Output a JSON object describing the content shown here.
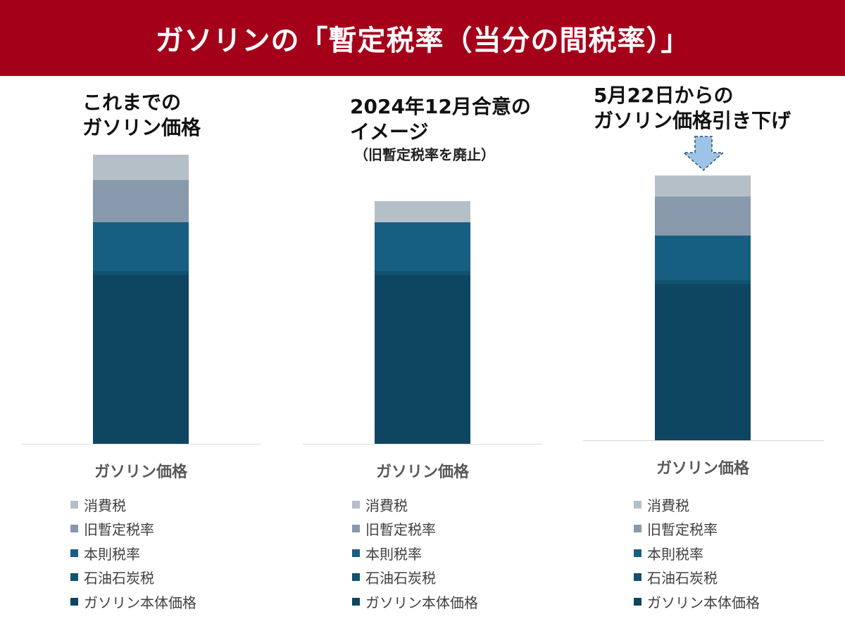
{
  "page": {
    "title": "ガソリンの「暫定税率（当分の間税率）」",
    "banner_color": "#A50019"
  },
  "panels": [
    {
      "heading_lines": [
        "これまでの",
        "ガソリン価格"
      ],
      "note": ""
    },
    {
      "heading_lines": [
        "2024年12月合意の",
        "イメージ"
      ],
      "note": "（旧暫定税率を廃止）"
    },
    {
      "heading_lines": [
        "5月22日からの",
        "ガソリン価格引き下げ"
      ],
      "note": "",
      "arrow_icon": "down-arrow-icon"
    }
  ],
  "chart_data": [
    {
      "type": "bar",
      "stacked": true,
      "category_label": "ガソリン価格",
      "series": [
        {
          "name": "消費税",
          "value": 12,
          "color": "#B5BFC8"
        },
        {
          "name": "旧暫定税率",
          "value": 20,
          "color": "#8799AA"
        },
        {
          "name": "本則税率",
          "value": 23,
          "color": "#175F82"
        },
        {
          "name": "石油石炭税",
          "value": 2,
          "color": "#115270"
        },
        {
          "name": "ガソリン本体価格",
          "value": 80,
          "color": "#0E4560"
        }
      ],
      "legend_order": [
        "消費税",
        "旧暫定税率",
        "本則税率",
        "石油石炭税",
        "ガソリン本体価格"
      ],
      "legend_position": "bottom",
      "grid": false,
      "axes_visible": false
    },
    {
      "type": "bar",
      "stacked": true,
      "category_label": "ガソリン価格",
      "series": [
        {
          "name": "消費税",
          "value": 10,
          "color": "#B5BFC8"
        },
        {
          "name": "旧暫定税率",
          "value": 0,
          "color": "#8799AA"
        },
        {
          "name": "本則税率",
          "value": 23,
          "color": "#175F82"
        },
        {
          "name": "石油石炭税",
          "value": 2,
          "color": "#115270"
        },
        {
          "name": "ガソリン本体価格",
          "value": 80,
          "color": "#0E4560"
        }
      ],
      "legend_order": [
        "消費税",
        "旧暫定税率",
        "本則税率",
        "石油石炭税",
        "ガソリン本体価格"
      ],
      "legend_position": "bottom",
      "grid": false,
      "axes_visible": false
    },
    {
      "type": "bar",
      "stacked": true,
      "category_label": "ガソリン価格",
      "series": [
        {
          "name": "消費税",
          "value": 10,
          "color": "#B5BFC8"
        },
        {
          "name": "旧暫定税率",
          "value": 18.5,
          "color": "#8799AA"
        },
        {
          "name": "本則税率",
          "value": 21,
          "color": "#175F82"
        },
        {
          "name": "石油石炭税",
          "value": 2,
          "color": "#115270"
        },
        {
          "name": "ガソリン本体価格",
          "value": 74,
          "color": "#0E4560"
        }
      ],
      "legend_order": [
        "消費税",
        "旧暫定税率",
        "本則税率",
        "石油石炭税",
        "ガソリン本体価格"
      ],
      "legend_position": "bottom",
      "grid": false,
      "axes_visible": false
    }
  ]
}
